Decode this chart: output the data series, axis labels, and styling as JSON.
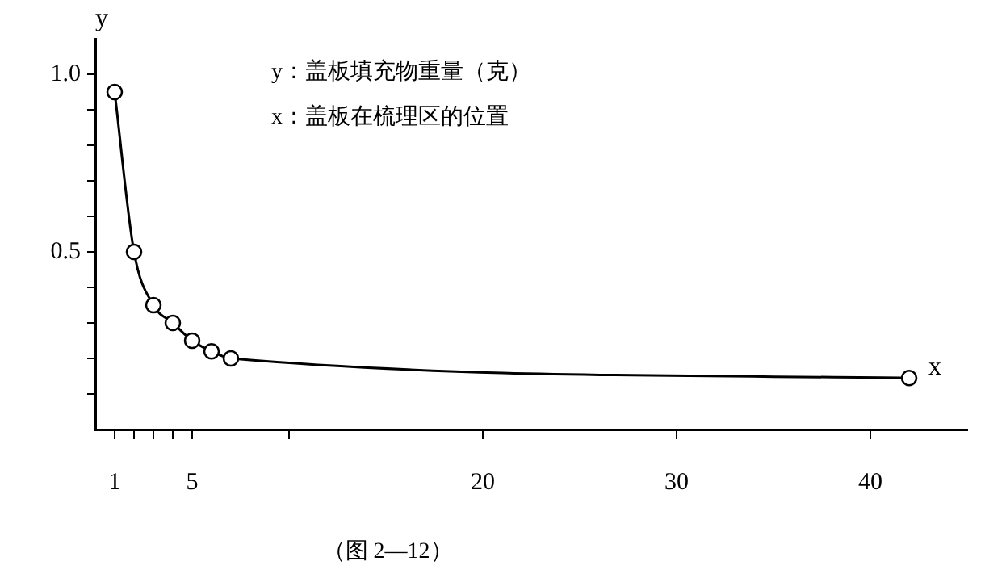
{
  "chart_data": {
    "type": "line",
    "xlabel": "x",
    "ylabel": "y",
    "annotations": [
      "y：盖板填充物重量（克）",
      "x：盖板在梳理区的位置",
      "（图 2—12）"
    ],
    "x": [
      1,
      2,
      3,
      4,
      5,
      6,
      7,
      42
    ],
    "series": [
      {
        "color": "#000000",
        "values": [
          0.95,
          0.5,
          0.35,
          0.3,
          0.25,
          0.22,
          0.2,
          0.145
        ]
      }
    ],
    "xlim": [
      0,
      45
    ],
    "ylim": [
      0,
      1.1
    ],
    "xticks": [
      1,
      {
        "value": 2,
        "label": null
      },
      {
        "value": 3,
        "label": null
      },
      {
        "value": 4,
        "label": null
      },
      5,
      {
        "value": 10,
        "label": null
      },
      20,
      30,
      40
    ],
    "yticks": [
      {
        "value": 0.1,
        "label": null
      },
      {
        "value": 0.2,
        "label": null
      },
      {
        "value": 0.3,
        "label": null
      },
      {
        "value": 0.4,
        "label": null
      },
      {
        "value": 0.5,
        "label": "0.5"
      },
      {
        "value": 0.6,
        "label": null
      },
      {
        "value": 0.7,
        "label": null
      },
      {
        "value": 0.8,
        "label": null
      },
      {
        "value": 0.9,
        "label": null
      },
      {
        "value": 1.0,
        "label": "1.0"
      }
    ],
    "grid": false,
    "legend": false,
    "marker": "circle",
    "line_style": "solid"
  }
}
